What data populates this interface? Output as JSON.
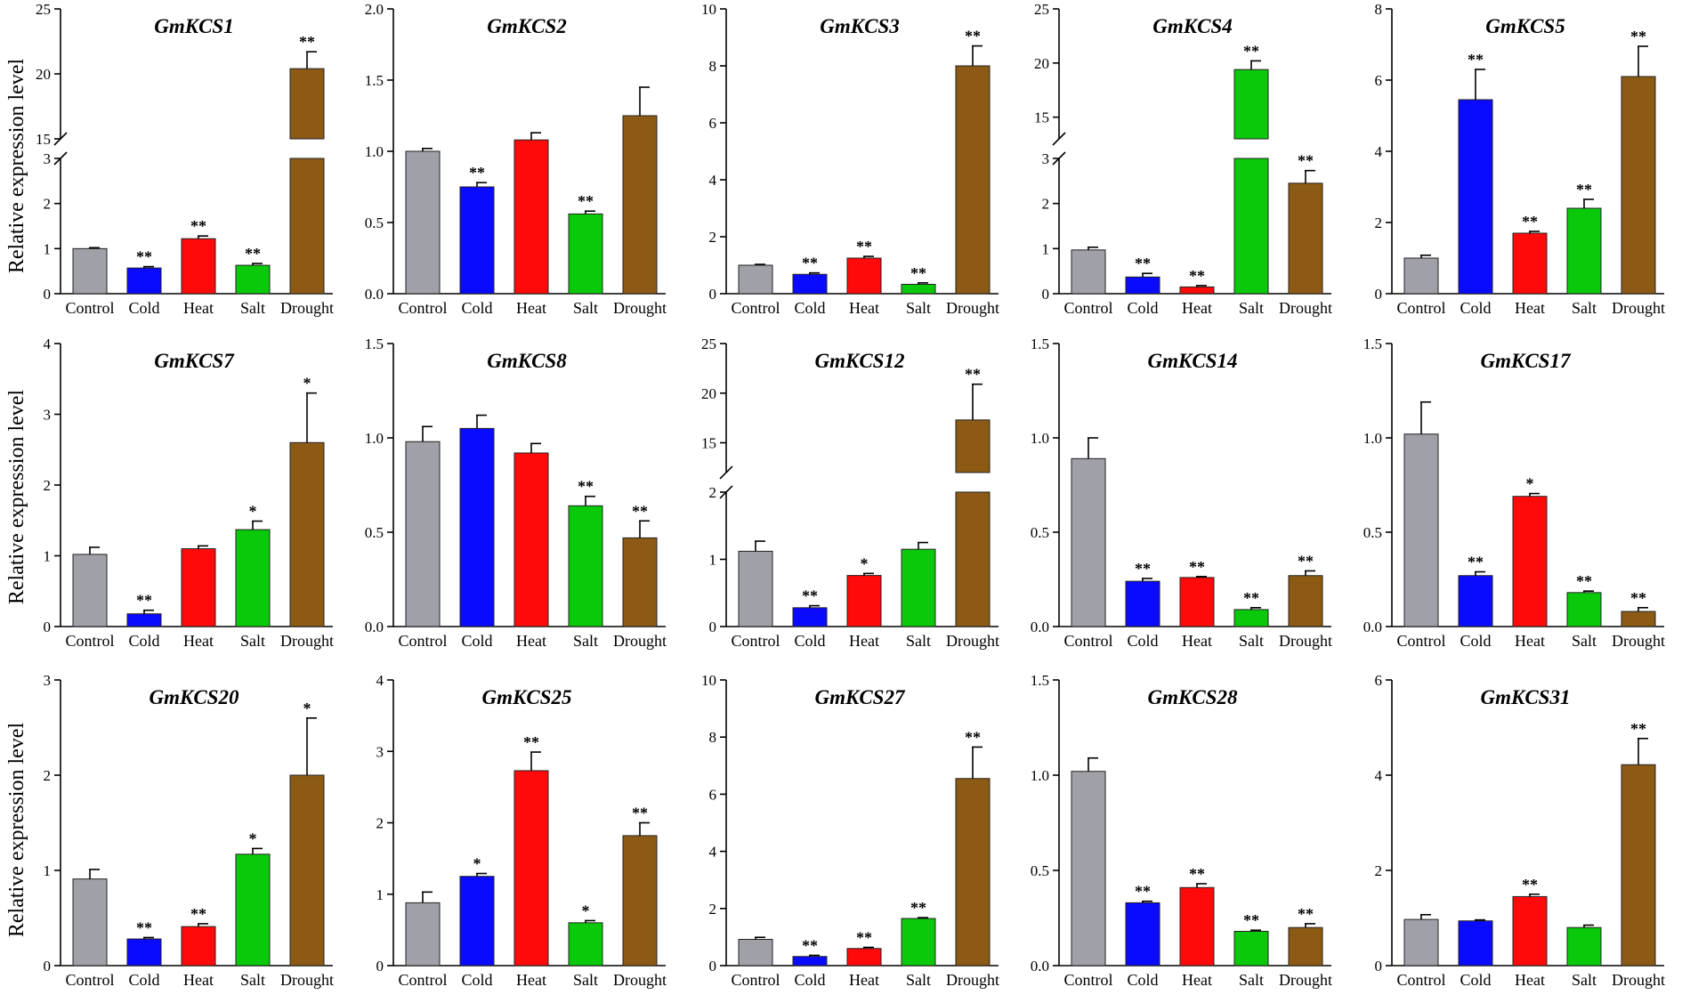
{
  "ylabel": "Relative expression level",
  "colors": {
    "Control": "#a0a0a8",
    "Cold": "#0a0aff",
    "Heat": "#ff0a0a",
    "Salt": "#0ac80a",
    "Drought": "#8c5a14"
  },
  "chart_data": [
    {
      "type": "bar",
      "title": "GmKCS1",
      "categories": [
        "Control",
        "Cold",
        "Heat",
        "Salt",
        "Drought"
      ],
      "values": [
        1.0,
        0.57,
        1.22,
        0.63,
        20.4
      ],
      "errors": [
        0.02,
        0.03,
        0.06,
        0.04,
        1.3
      ],
      "significance": [
        "",
        "**",
        "**",
        "**",
        "**"
      ],
      "ylim": [
        0,
        25
      ],
      "yticks": [
        0,
        1,
        2,
        3,
        15,
        20,
        25
      ],
      "break": {
        "lower_max": 3,
        "upper_min": 15
      }
    },
    {
      "type": "bar",
      "title": "GmKCS2",
      "categories": [
        "Control",
        "Cold",
        "Heat",
        "Salt",
        "Drought"
      ],
      "values": [
        1.0,
        0.75,
        1.08,
        0.56,
        1.25
      ],
      "errors": [
        0.02,
        0.03,
        0.05,
        0.02,
        0.2
      ],
      "significance": [
        "",
        "**",
        "",
        "**",
        ""
      ],
      "ylim": [
        0,
        2.0
      ],
      "yticks": [
        0,
        0.5,
        1.0,
        1.5,
        2.0
      ],
      "ytick_labels": [
        "0.0",
        "0.5",
        "1.0",
        "1.5",
        "2.0"
      ]
    },
    {
      "type": "bar",
      "title": "GmKCS3",
      "categories": [
        "Control",
        "Cold",
        "Heat",
        "Salt",
        "Drought"
      ],
      "values": [
        1.0,
        0.68,
        1.25,
        0.33,
        8.0
      ],
      "errors": [
        0.03,
        0.05,
        0.06,
        0.05,
        0.7
      ],
      "significance": [
        "",
        "**",
        "**",
        "**",
        "**"
      ],
      "ylim": [
        0,
        10
      ],
      "yticks": [
        0,
        2,
        4,
        6,
        8,
        10
      ]
    },
    {
      "type": "bar",
      "title": "GmKCS4",
      "categories": [
        "Control",
        "Cold",
        "Heat",
        "Salt",
        "Drought"
      ],
      "values": [
        0.97,
        0.37,
        0.15,
        19.4,
        2.45
      ],
      "errors": [
        0.06,
        0.08,
        0.03,
        0.8,
        0.28
      ],
      "significance": [
        "",
        "**",
        "**",
        "**",
        "**"
      ],
      "ylim": [
        0,
        25
      ],
      "yticks": [
        0,
        1,
        2,
        3,
        15,
        20,
        25
      ],
      "break": {
        "lower_max": 3,
        "upper_min": 13
      }
    },
    {
      "type": "bar",
      "title": "GmKCS5",
      "categories": [
        "Control",
        "Cold",
        "Heat",
        "Salt",
        "Drought"
      ],
      "values": [
        1.0,
        5.45,
        1.7,
        2.4,
        6.1
      ],
      "errors": [
        0.08,
        0.85,
        0.05,
        0.25,
        0.85
      ],
      "significance": [
        "",
        "**",
        "**",
        "**",
        "**"
      ],
      "ylim": [
        0,
        8
      ],
      "yticks": [
        0,
        2,
        4,
        6,
        8
      ]
    },
    {
      "type": "bar",
      "title": "GmKCS7",
      "categories": [
        "Control",
        "Cold",
        "Heat",
        "Salt",
        "Drought"
      ],
      "values": [
        1.02,
        0.18,
        1.1,
        1.37,
        2.6
      ],
      "errors": [
        0.1,
        0.05,
        0.04,
        0.12,
        0.7
      ],
      "significance": [
        "",
        "**",
        "",
        "*",
        "*"
      ],
      "ylim": [
        0,
        4
      ],
      "yticks": [
        0,
        1,
        2,
        3,
        4
      ]
    },
    {
      "type": "bar",
      "title": "GmKCS8",
      "categories": [
        "Control",
        "Cold",
        "Heat",
        "Salt",
        "Drought"
      ],
      "values": [
        0.98,
        1.05,
        0.92,
        0.64,
        0.47
      ],
      "errors": [
        0.08,
        0.07,
        0.05,
        0.05,
        0.09
      ],
      "significance": [
        "",
        "",
        "",
        "**",
        "**"
      ],
      "ylim": [
        0,
        1.5
      ],
      "yticks": [
        0,
        0.5,
        1.0,
        1.5
      ],
      "ytick_labels": [
        "0.0",
        "0.5",
        "1.0",
        "1.5"
      ]
    },
    {
      "type": "bar",
      "title": "GmKCS12",
      "categories": [
        "Control",
        "Cold",
        "Heat",
        "Salt",
        "Drought"
      ],
      "values": [
        1.12,
        0.28,
        0.76,
        1.15,
        17.3
      ],
      "errors": [
        0.15,
        0.03,
        0.03,
        0.1,
        3.6
      ],
      "significance": [
        "",
        "**",
        "*",
        "",
        "**"
      ],
      "ylim": [
        0,
        25
      ],
      "yticks": [
        0,
        1,
        2,
        15,
        20,
        25
      ],
      "break": {
        "lower_max": 2,
        "upper_min": 12
      }
    },
    {
      "type": "bar",
      "title": "GmKCS14",
      "categories": [
        "Control",
        "Cold",
        "Heat",
        "Salt",
        "Drought"
      ],
      "values": [
        0.89,
        0.24,
        0.26,
        0.09,
        0.27
      ],
      "errors": [
        0.11,
        0.015,
        0.005,
        0.01,
        0.025
      ],
      "significance": [
        "",
        "**",
        "**",
        "**",
        "**"
      ],
      "ylim": [
        0,
        1.5
      ],
      "yticks": [
        0,
        0.5,
        1.0,
        1.5
      ],
      "ytick_labels": [
        "0.0",
        "0.5",
        "1.0",
        "1.5"
      ]
    },
    {
      "type": "bar",
      "title": "GmKCS17",
      "categories": [
        "Control",
        "Cold",
        "Heat",
        "Salt",
        "Drought"
      ],
      "values": [
        1.02,
        0.27,
        0.69,
        0.18,
        0.08
      ],
      "errors": [
        0.17,
        0.02,
        0.015,
        0.008,
        0.02
      ],
      "significance": [
        "",
        "**",
        "*",
        "**",
        "**"
      ],
      "ylim": [
        0,
        1.5
      ],
      "yticks": [
        0,
        0.5,
        1.0,
        1.5
      ],
      "ytick_labels": [
        "0.0",
        "0.5",
        "1.0",
        "1.5"
      ]
    },
    {
      "type": "bar",
      "title": "GmKCS20",
      "categories": [
        "Control",
        "Cold",
        "Heat",
        "Salt",
        "Drought"
      ],
      "values": [
        0.91,
        0.28,
        0.41,
        1.17,
        2.0
      ],
      "errors": [
        0.1,
        0.015,
        0.03,
        0.06,
        0.6
      ],
      "significance": [
        "",
        "**",
        "**",
        "*",
        "*"
      ],
      "ylim": [
        0,
        3
      ],
      "yticks": [
        0,
        1,
        2,
        3
      ]
    },
    {
      "type": "bar",
      "title": "GmKCS25",
      "categories": [
        "Control",
        "Cold",
        "Heat",
        "Salt",
        "Drought"
      ],
      "values": [
        0.88,
        1.25,
        2.73,
        0.6,
        1.82
      ],
      "errors": [
        0.15,
        0.04,
        0.26,
        0.03,
        0.18
      ],
      "significance": [
        "",
        "*",
        "**",
        "*",
        "**"
      ],
      "ylim": [
        0,
        4
      ],
      "yticks": [
        0,
        1,
        2,
        3,
        4
      ]
    },
    {
      "type": "bar",
      "title": "GmKCS27",
      "categories": [
        "Control",
        "Cold",
        "Heat",
        "Salt",
        "Drought"
      ],
      "values": [
        0.92,
        0.32,
        0.6,
        1.65,
        6.55
      ],
      "errors": [
        0.07,
        0.04,
        0.04,
        0.03,
        1.1
      ],
      "significance": [
        "",
        "**",
        "**",
        "**",
        "**"
      ],
      "ylim": [
        0,
        10
      ],
      "yticks": [
        0,
        2,
        4,
        6,
        8,
        10
      ]
    },
    {
      "type": "bar",
      "title": "GmKCS28",
      "categories": [
        "Control",
        "Cold",
        "Heat",
        "Salt",
        "Drought"
      ],
      "values": [
        1.02,
        0.33,
        0.41,
        0.18,
        0.2
      ],
      "errors": [
        0.07,
        0.008,
        0.02,
        0.006,
        0.02
      ],
      "significance": [
        "",
        "**",
        "**",
        "**",
        "**"
      ],
      "ylim": [
        0,
        1.5
      ],
      "yticks": [
        0,
        0.5,
        1.0,
        1.5
      ],
      "ytick_labels": [
        "0.0",
        "0.5",
        "1.0",
        "1.5"
      ]
    },
    {
      "type": "bar",
      "title": "GmKCS31",
      "categories": [
        "Control",
        "Cold",
        "Heat",
        "Salt",
        "Drought"
      ],
      "values": [
        0.97,
        0.94,
        1.45,
        0.8,
        4.22
      ],
      "errors": [
        0.1,
        0.02,
        0.05,
        0.05,
        0.55
      ],
      "significance": [
        "",
        "",
        "**",
        "",
        "**"
      ],
      "ylim": [
        0,
        6
      ],
      "yticks": [
        0,
        2,
        4,
        6
      ]
    }
  ]
}
